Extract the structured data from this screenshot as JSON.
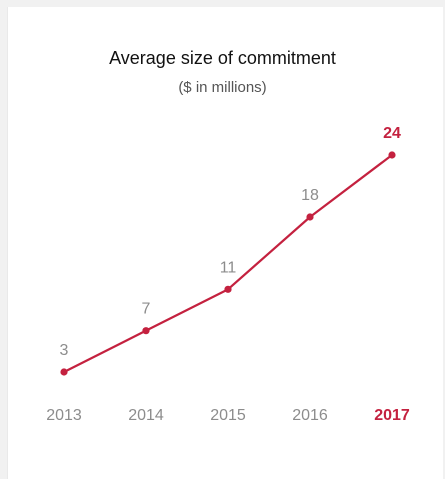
{
  "chart_data": {
    "type": "line",
    "title": "Average size of commitment",
    "subtitle": "($ in millions)",
    "categories": [
      "2013",
      "2014",
      "2015",
      "2016",
      "2017"
    ],
    "series": [
      {
        "values": [
          3,
          7,
          11,
          18,
          24
        ]
      }
    ],
    "highlight_category": "2017",
    "colors": {
      "line": "#c4213f",
      "highlight": "#c4213f",
      "label": "#8c8c8c",
      "title": "#111111",
      "subtitle": "#555555"
    }
  }
}
